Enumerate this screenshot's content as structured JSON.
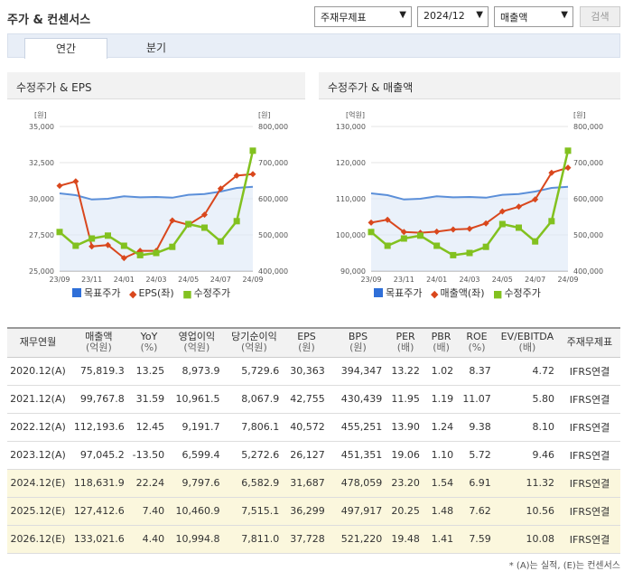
{
  "header": {
    "title": "주가 & 컨센서스",
    "filters": {
      "basis": "주재무제표",
      "period": "2024/12",
      "metric": "매출액"
    },
    "search_label": "검색"
  },
  "tabs": [
    "연간",
    "분기"
  ],
  "colors": {
    "target": "#2f6fd8",
    "eps": "#d9471d",
    "price": "#82c11f"
  },
  "charts": [
    {
      "title": "수정주가 & EPS",
      "left_unit": "[원]",
      "right_unit": "[원]",
      "left_ticks": [
        "35,000",
        "32,500",
        "30,000",
        "27,500",
        "25,000"
      ],
      "right_ticks": [
        "800,000",
        "700,000",
        "600,000",
        "500,000",
        "400,000"
      ],
      "x_labels": [
        "23/09",
        "23/11",
        "24/01",
        "24/03",
        "24/05",
        "24/07",
        "24/09"
      ],
      "legend": [
        "목표주가",
        "EPS(좌)",
        "수정주가"
      ],
      "chart_data": {
        "type": "line",
        "categories": [
          "23/09",
          "23/10",
          "23/11",
          "23/12",
          "24/01",
          "24/02",
          "24/03",
          "24/04",
          "24/05",
          "24/06",
          "24/07",
          "24/08",
          "24/09"
        ],
        "left_range": [
          25000,
          35000
        ],
        "right_range": [
          400000,
          800000
        ],
        "series": [
          {
            "name": "목표주가",
            "axis": "right",
            "values": [
              615000,
              610000,
              598000,
              600000,
              607000,
              604000,
              605000,
              603000,
              611000,
              613000,
              620000,
              630000,
              633000
            ]
          },
          {
            "name": "EPS(좌)",
            "axis": "left",
            "values": [
              30900,
              31200,
              26700,
              26800,
              25900,
              26400,
              26400,
              28500,
              28200,
              28900,
              30700,
              31600,
              31700
            ]
          },
          {
            "name": "수정주가",
            "axis": "right",
            "values": [
              508000,
              470000,
              490000,
              498000,
              470000,
              444000,
              450000,
              467000,
              530000,
              520000,
              482000,
              538000,
              733000
            ]
          }
        ]
      }
    },
    {
      "title": "수정주가 & 매출액",
      "left_unit": "[억원]",
      "right_unit": "[원]",
      "left_ticks": [
        "130,000",
        "120,000",
        "110,000",
        "100,000",
        "90,000"
      ],
      "right_ticks": [
        "800,000",
        "700,000",
        "600,000",
        "500,000",
        "400,000"
      ],
      "x_labels": [
        "23/09",
        "23/11",
        "24/01",
        "24/03",
        "24/05",
        "24/07",
        "24/09"
      ],
      "legend": [
        "목표주가",
        "매출액(좌)",
        "수정주가"
      ],
      "chart_data": {
        "type": "line",
        "categories": [
          "23/09",
          "23/10",
          "23/11",
          "23/12",
          "24/01",
          "24/02",
          "24/03",
          "24/04",
          "24/05",
          "24/06",
          "24/07",
          "24/08",
          "24/09"
        ],
        "left_range": [
          90000,
          130000
        ],
        "right_range": [
          400000,
          800000
        ],
        "series": [
          {
            "name": "목표주가",
            "axis": "right",
            "values": [
              615000,
              610000,
              598000,
              600000,
              607000,
              604000,
              605000,
              603000,
              611000,
              613000,
              620000,
              630000,
              633000
            ]
          },
          {
            "name": "매출액(좌)",
            "axis": "left",
            "values": [
              103400,
              104200,
              100800,
              100600,
              100900,
              101500,
              101700,
              103200,
              106500,
              107800,
              109800,
              117200,
              118600
            ]
          },
          {
            "name": "수정주가",
            "axis": "right",
            "values": [
              508000,
              470000,
              490000,
              498000,
              470000,
              444000,
              450000,
              467000,
              530000,
              520000,
              482000,
              538000,
              733000
            ]
          }
        ]
      }
    }
  ],
  "table": {
    "headers": [
      {
        "label": "재무연월",
        "unit": ""
      },
      {
        "label": "매출액",
        "unit": "(억원)"
      },
      {
        "label": "YoY",
        "unit": "(%)"
      },
      {
        "label": "영업이익",
        "unit": "(억원)"
      },
      {
        "label": "당기순이익",
        "unit": "(억원)"
      },
      {
        "label": "EPS",
        "unit": "(원)"
      },
      {
        "label": "BPS",
        "unit": "(원)"
      },
      {
        "label": "PER",
        "unit": "(배)"
      },
      {
        "label": "PBR",
        "unit": "(배)"
      },
      {
        "label": "ROE",
        "unit": "(%)"
      },
      {
        "label": "EV/EBITDA",
        "unit": "(배)"
      },
      {
        "label": "주재무제표",
        "unit": ""
      }
    ],
    "rows": [
      [
        "2020.12(A)",
        "75,819.3",
        "13.25",
        "8,973.9",
        "5,729.6",
        "30,363",
        "394,347",
        "13.22",
        "1.02",
        "8.37",
        "4.72",
        "IFRS연결"
      ],
      [
        "2021.12(A)",
        "99,767.8",
        "31.59",
        "10,961.5",
        "8,067.9",
        "42,755",
        "430,439",
        "11.95",
        "1.19",
        "11.07",
        "5.80",
        "IFRS연결"
      ],
      [
        "2022.12(A)",
        "112,193.6",
        "12.45",
        "9,191.7",
        "7,806.1",
        "40,572",
        "455,251",
        "13.90",
        "1.24",
        "9.38",
        "8.10",
        "IFRS연결"
      ],
      [
        "2023.12(A)",
        "97,045.2",
        "-13.50",
        "6,599.4",
        "5,272.6",
        "26,127",
        "451,351",
        "19.06",
        "1.10",
        "5.72",
        "9.46",
        "IFRS연결"
      ],
      [
        "2024.12(E)",
        "118,631.9",
        "22.24",
        "9,797.6",
        "6,582.9",
        "31,687",
        "478,059",
        "23.20",
        "1.54",
        "6.91",
        "11.32",
        "IFRS연결"
      ],
      [
        "2025.12(E)",
        "127,412.6",
        "7.40",
        "10,460.9",
        "7,515.1",
        "36,299",
        "497,917",
        "20.25",
        "1.48",
        "7.62",
        "10.56",
        "IFRS연결"
      ],
      [
        "2026.12(E)",
        "133,021.6",
        "4.40",
        "10,994.8",
        "7,811.0",
        "37,728",
        "521,220",
        "19.48",
        "1.41",
        "7.59",
        "10.08",
        "IFRS연결"
      ]
    ]
  },
  "footnote": "* (A)는 실적, (E)는 컨센서스"
}
